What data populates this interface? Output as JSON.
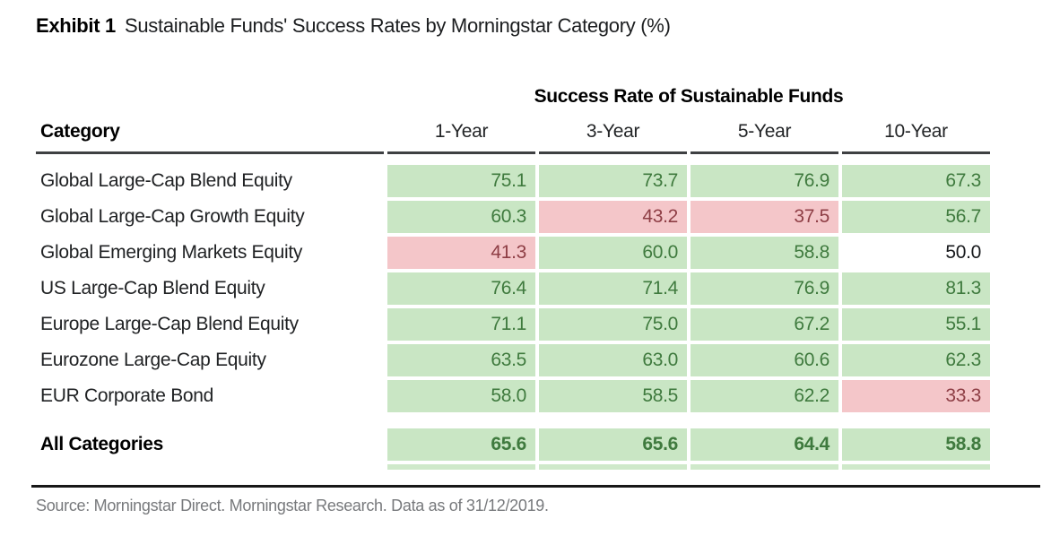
{
  "title": {
    "exhibit": "Exhibit 1",
    "subtitle": "Sustainable Funds' Success Rates by Morningstar Category (%)"
  },
  "table": {
    "spanner": "Success Rate of Sustainable Funds",
    "category_header": "Category",
    "period_headers": [
      "1-Year",
      "3-Year",
      "5-Year",
      "10-Year"
    ],
    "rows": [
      {
        "category": "Global Large-Cap Blend Equity",
        "values": [
          "75.1",
          "73.7",
          "76.9",
          "67.3"
        ],
        "tones": [
          "pos",
          "pos",
          "pos",
          "pos"
        ]
      },
      {
        "category": "Global Large-Cap Growth Equity",
        "values": [
          "60.3",
          "43.2",
          "37.5",
          "56.7"
        ],
        "tones": [
          "pos",
          "neg",
          "neg",
          "pos"
        ]
      },
      {
        "category": "Global Emerging Markets Equity",
        "values": [
          "41.3",
          "60.0",
          "58.8",
          "50.0"
        ],
        "tones": [
          "neg",
          "pos",
          "pos",
          "neutral"
        ]
      },
      {
        "category": "US Large-Cap Blend Equity",
        "values": [
          "76.4",
          "71.4",
          "76.9",
          "81.3"
        ],
        "tones": [
          "pos",
          "pos",
          "pos",
          "pos"
        ]
      },
      {
        "category": "Europe Large-Cap Blend Equity",
        "values": [
          "71.1",
          "75.0",
          "67.2",
          "55.1"
        ],
        "tones": [
          "pos",
          "pos",
          "pos",
          "pos"
        ]
      },
      {
        "category": "Eurozone Large-Cap Equity",
        "values": [
          "63.5",
          "63.0",
          "60.6",
          "62.3"
        ],
        "tones": [
          "pos",
          "pos",
          "pos",
          "pos"
        ]
      },
      {
        "category": "EUR Corporate Bond",
        "values": [
          "58.0",
          "58.5",
          "62.2",
          "33.3"
        ],
        "tones": [
          "pos",
          "pos",
          "pos",
          "neg"
        ]
      }
    ],
    "total_row": {
      "category": "All Categories",
      "values": [
        "65.6",
        "65.6",
        "64.4",
        "58.8"
      ],
      "tones": [
        "pos",
        "pos",
        "pos",
        "pos"
      ]
    }
  },
  "source": "Source: Morningstar Direct. Morningstar Research. Data as of 31/12/2019.",
  "colors": {
    "positive_bg": "#c9e6c4",
    "positive_text": "#3f7a3e",
    "negative_bg": "#f4c6c9",
    "negative_text": "#8e3e45",
    "neutral_text": "#17191c",
    "header_rule": "#3e4042",
    "bottom_rule": "#171717",
    "source_text": "#77797c"
  },
  "chart_data": {
    "type": "table",
    "title": "Sustainable Funds' Success Rates by Morningstar Category (%)",
    "group_header": "Success Rate of Sustainable Funds",
    "columns": [
      "Category",
      "1-Year",
      "3-Year",
      "5-Year",
      "10-Year"
    ],
    "rows": [
      [
        "Global Large-Cap Blend Equity",
        75.1,
        73.7,
        76.9,
        67.3
      ],
      [
        "Global Large-Cap Growth Equity",
        60.3,
        43.2,
        37.5,
        56.7
      ],
      [
        "Global Emerging Markets Equity",
        41.3,
        60.0,
        58.8,
        50.0
      ],
      [
        "US Large-Cap Blend Equity",
        76.4,
        71.4,
        76.9,
        81.3
      ],
      [
        "Europe Large-Cap Blend Equity",
        71.1,
        75.0,
        67.2,
        55.1
      ],
      [
        "Eurozone Large-Cap Equity",
        63.5,
        63.0,
        60.6,
        62.3
      ],
      [
        "EUR Corporate Bond",
        58.0,
        58.5,
        62.2,
        33.3
      ],
      [
        "All Categories",
        65.6,
        65.6,
        64.4,
        58.8
      ]
    ],
    "cell_coloring": "green >= 50 success, pink < 50 success, white = 50.0 neutral"
  }
}
